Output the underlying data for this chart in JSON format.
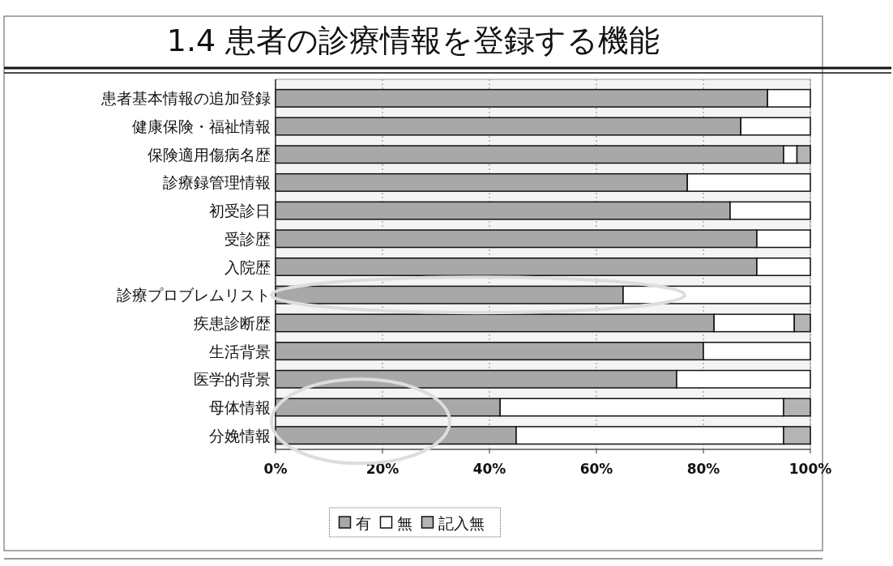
{
  "chart_data": {
    "type": "bar",
    "title": "1.4 患者の診療情報を登録する機能",
    "orientation": "horizontal",
    "stacked": true,
    "categories": [
      "患者基本情報の追加登録",
      "健康保険・福祉情報",
      "保険適用傷病名歴",
      "診療録管理情報",
      "初受診日",
      "受診歴",
      "入院歴",
      "診療プロブレムリスト",
      "疾患診断歴",
      "生活背景",
      "医学的背景",
      "母体情報",
      "分娩情報"
    ],
    "series": [
      {
        "name": "有",
        "color": "#a8a8a8",
        "values": [
          92,
          87,
          95,
          77,
          85,
          90,
          90,
          65,
          82,
          80,
          75,
          42,
          45
        ]
      },
      {
        "name": "無",
        "color": "#ffffff",
        "values": [
          8,
          13,
          2.5,
          23,
          15,
          10,
          10,
          35,
          15,
          20,
          25,
          53,
          50
        ]
      },
      {
        "name": "記入無",
        "color": "#b4b4b4",
        "values": [
          0,
          0,
          2.5,
          0,
          0,
          0,
          0,
          0,
          3,
          0,
          0,
          5,
          5
        ]
      }
    ],
    "xlim": [
      0,
      100
    ],
    "xticks": [
      {
        "value": 0,
        "label": "0%"
      },
      {
        "value": 20,
        "label": "20%"
      },
      {
        "value": 40,
        "label": "40%"
      },
      {
        "value": 60,
        "label": "60%"
      },
      {
        "value": 80,
        "label": "80%"
      },
      {
        "value": 100,
        "label": "100%"
      }
    ],
    "grid": "x",
    "legend": "bottom"
  }
}
